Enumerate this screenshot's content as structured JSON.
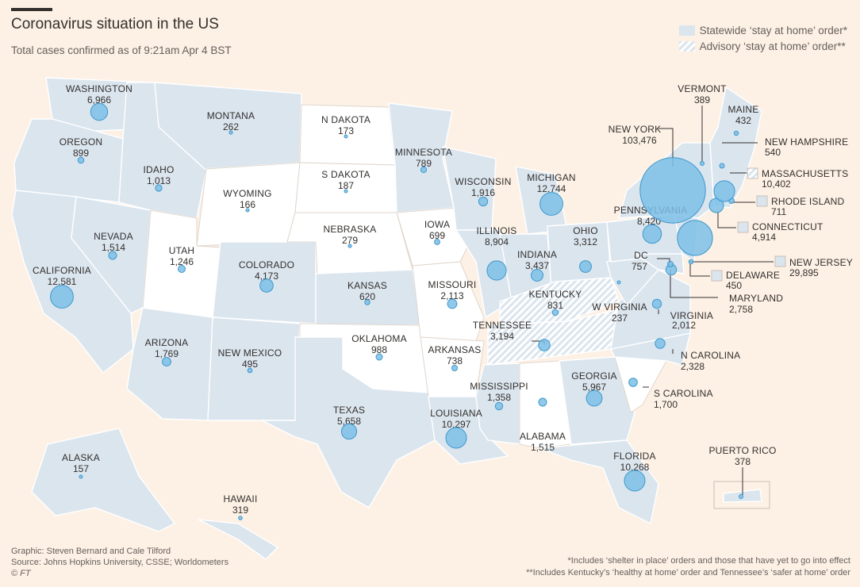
{
  "header": {
    "title": "Coronavirus situation in the US",
    "subtitle": "Total cases confirmed as of 9:21am Apr 4 BST"
  },
  "legend": {
    "items": [
      {
        "label": "Statewide ‘stay at home’ order*",
        "style": "solid",
        "color": "#dbe5ee"
      },
      {
        "label": "Advisory ‘stay at home’ order**",
        "style": "hatched",
        "color": "#dbe5ee"
      }
    ]
  },
  "colors": {
    "background": "#fdf1e5",
    "statewide": "#dbe5ee",
    "no_order": "#ffffff",
    "bubble": "#7dc0e6",
    "bubble_stroke": "#3e98cc"
  },
  "states": [
    {
      "name": "WASHINGTON",
      "cases": "6,966"
    },
    {
      "name": "OREGON",
      "cases": "899"
    },
    {
      "name": "CALIFORNIA",
      "cases": "12,581"
    },
    {
      "name": "NEVADA",
      "cases": "1,514"
    },
    {
      "name": "IDAHO",
      "cases": "1,013"
    },
    {
      "name": "MONTANA",
      "cases": "262"
    },
    {
      "name": "WYOMING",
      "cases": "166"
    },
    {
      "name": "UTAH",
      "cases": "1,246"
    },
    {
      "name": "COLORADO",
      "cases": "4,173"
    },
    {
      "name": "ARIZONA",
      "cases": "1,769"
    },
    {
      "name": "NEW MEXICO",
      "cases": "495"
    },
    {
      "name": "N DAKOTA",
      "cases": "173"
    },
    {
      "name": "S DAKOTA",
      "cases": "187"
    },
    {
      "name": "NEBRASKA",
      "cases": "279"
    },
    {
      "name": "KANSAS",
      "cases": "620"
    },
    {
      "name": "OKLAHOMA",
      "cases": "988"
    },
    {
      "name": "TEXAS",
      "cases": "5,658"
    },
    {
      "name": "MINNESOTA",
      "cases": "789"
    },
    {
      "name": "IOWA",
      "cases": "699"
    },
    {
      "name": "MISSOURI",
      "cases": "2,113"
    },
    {
      "name": "ARKANSAS",
      "cases": "738"
    },
    {
      "name": "LOUISIANA",
      "cases": "10,297"
    },
    {
      "name": "WISCONSIN",
      "cases": "1,916"
    },
    {
      "name": "ILLINOIS",
      "cases": "8,904"
    },
    {
      "name": "MICHIGAN",
      "cases": "12,744"
    },
    {
      "name": "INDIANA",
      "cases": "3,437"
    },
    {
      "name": "OHIO",
      "cases": "3,312"
    },
    {
      "name": "KENTUCKY",
      "cases": "831"
    },
    {
      "name": "TENNESSEE",
      "cases": "3,194"
    },
    {
      "name": "MISSISSIPPI",
      "cases": "1,358"
    },
    {
      "name": "ALABAMA",
      "cases": "1,515"
    },
    {
      "name": "GEORGIA",
      "cases": "5,967"
    },
    {
      "name": "FLORIDA",
      "cases": "10,268"
    },
    {
      "name": "S CAROLINA",
      "cases": "1,700"
    },
    {
      "name": "N CAROLINA",
      "cases": "2,328"
    },
    {
      "name": "VIRGINIA",
      "cases": "2,012"
    },
    {
      "name": "W VIRGINIA",
      "cases": "237"
    },
    {
      "name": "MARYLAND",
      "cases": "2,758"
    },
    {
      "name": "DELAWARE",
      "cases": "450"
    },
    {
      "name": "DC",
      "cases": "757"
    },
    {
      "name": "PENNSYLVANIA",
      "cases": "8,420"
    },
    {
      "name": "NEW JERSEY",
      "cases": "29,895"
    },
    {
      "name": "NEW YORK",
      "cases": "103,476"
    },
    {
      "name": "CONNECTICUT",
      "cases": "4,914"
    },
    {
      "name": "RHODE ISLAND",
      "cases": "711"
    },
    {
      "name": "MASSACHUSETTS",
      "cases": "10,402"
    },
    {
      "name": "VERMONT",
      "cases": "389"
    },
    {
      "name": "NEW HAMPSHIRE",
      "cases": "540"
    },
    {
      "name": "MAINE",
      "cases": "432"
    },
    {
      "name": "ALASKA",
      "cases": "157"
    },
    {
      "name": "HAWAII",
      "cases": "319"
    },
    {
      "name": "PUERTO RICO",
      "cases": "378"
    }
  ],
  "footer": {
    "graphic": "Graphic: Steven Bernard and Cale Tilford",
    "source": "Source: Johns Hopkins University, CSSE; Worldometers",
    "copyright": "© FT",
    "note1": "*Includes ‘shelter in place’ orders and those that have yet to go into effect",
    "note2": "**Includes Kentucky’s ‘healthy at home’ order and Tennessee’s ‘safer at home’ order"
  }
}
